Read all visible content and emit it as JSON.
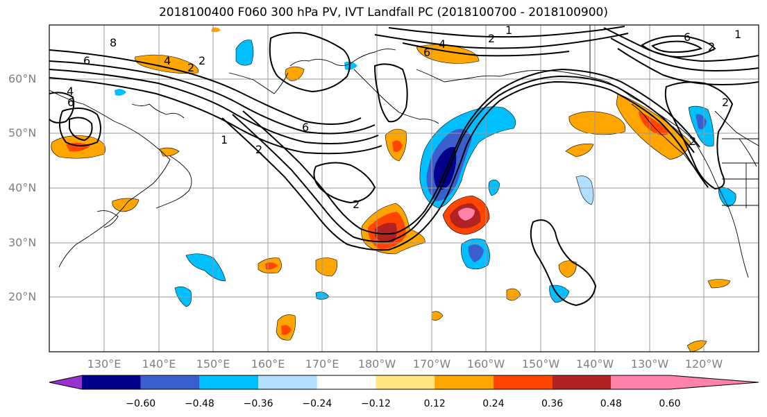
{
  "title": "2018100400 F060 300 hPa PV, IVT Landfall PC (2018100700 - 2018100900)",
  "lat_labels": [
    "60°N",
    "50°N",
    "40°N",
    "30°N",
    "20°N"
  ],
  "lon_labels": [
    "130°E",
    "140°E",
    "150°E",
    "160°E",
    "170°E",
    "180°W",
    "170°W",
    "160°W",
    "150°W",
    "140°W",
    "130°W",
    "120°W"
  ],
  "contour_labels": [
    "6",
    "2",
    "4",
    "6",
    "6",
    "1",
    "2",
    "2",
    "8",
    "2",
    "4",
    "6",
    "2",
    "1",
    "6",
    "2",
    "2",
    "1",
    "2",
    "4"
  ],
  "colorbar": {
    "ticks": [
      "−0.60",
      "−0.48",
      "−0.36",
      "−0.24",
      "−0.12",
      "0.12",
      "0.24",
      "0.36",
      "0.48",
      "0.60"
    ],
    "colors": [
      "#9932cc",
      "#00008b",
      "#3a5fcd",
      "#00bfff",
      "#b2dfff",
      "#ffffff",
      "#ffe680",
      "#ffa500",
      "#ff4500",
      "#b22222",
      "#ff82ab"
    ]
  }
}
